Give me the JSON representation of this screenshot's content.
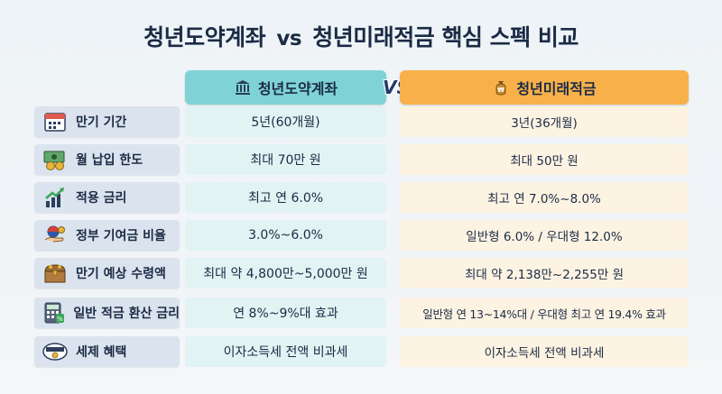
{
  "title": {
    "left": "청년도약계좌",
    "vs": "vs",
    "right": "청년미래적금",
    "suffix": "핵심 스펙 비교"
  },
  "columns": {
    "left": {
      "label": "청년도약계좌",
      "icon": "bank-icon",
      "color": "#7fd3d6"
    },
    "vs": "VS",
    "right": {
      "label": "청년미래적금",
      "icon": "money-bag-icon",
      "color": "#f8b14a"
    }
  },
  "rows": [
    {
      "label": "만기 기간",
      "icon": "calendar-icon",
      "left": "5년(60개월)",
      "right": "3년(36개월)"
    },
    {
      "label": "월 납입 한도",
      "icon": "cash-coins-icon",
      "left": "최대 70만 원",
      "right": "최대 50만 원"
    },
    {
      "label": "적용 금리",
      "icon": "growth-chart-icon",
      "left": "최고 연 6.0%",
      "right": "최고 연 7.0%~8.0%"
    },
    {
      "label": "정부 기여금 비율",
      "icon": "government-money-icon",
      "left": "3.0%~6.0%",
      "right": "일반형 6.0% / 우대형 12.0%"
    },
    {
      "label": "만기 예상 수령액",
      "icon": "treasure-chest-icon",
      "left": "최대 약 4,800만~5,000만 원",
      "right": "최대 약 2,138만~2,255만 원"
    },
    {
      "label": "일반 적금 환산 금리",
      "icon": "calculator-icon",
      "left": "연 8%~9%대 효과",
      "right": "일반형 연 13~14%대 / 우대형 최고 연 19.4% 효과"
    },
    {
      "label": "세제 혜택",
      "icon": "tax-free-icon",
      "left": "이자소득세 전액 비과세",
      "right": "이자소득세 전액 비과세"
    }
  ]
}
